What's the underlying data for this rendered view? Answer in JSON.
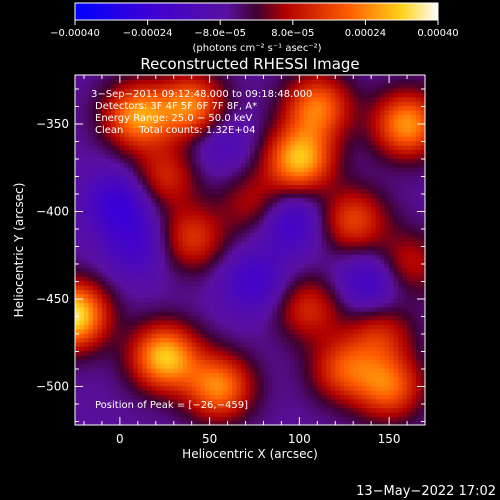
{
  "chart_data": {
    "type": "heatmap",
    "title": "Reconstructed RHESSI Image",
    "xlabel": "Heliocentric X (arcsec)",
    "ylabel": "Heliocentric Y (arcsec)",
    "xlim": [
      -25,
      170
    ],
    "ylim": [
      -522,
      -322
    ],
    "x_ticks": [
      0,
      50,
      100,
      150
    ],
    "y_ticks": [
      -350,
      -400,
      -450,
      -500
    ],
    "x_tick_labels": [
      "0",
      "50",
      "100",
      "150"
    ],
    "y_tick_labels": [
      "−350",
      "−400",
      "−450",
      "−500"
    ],
    "colorbar": {
      "min": -0.0004,
      "max": 0.0004,
      "ticks": [
        -0.0004,
        -0.00024,
        -8e-05,
        8e-05,
        0.00024,
        0.0004
      ],
      "tick_labels": [
        "−0.00040",
        "−0.00024",
        "−8.0e−05",
        "8.0e−05",
        "0.00024",
        "0.00040"
      ],
      "unit_label": "(photons cm⁻² s⁻¹ asec⁻²)",
      "colormap": "RHESSI (blue→purple→red→orange→yellow→white)"
    },
    "annotations": [
      "3−Sep−2011 09:12:48.000 to 09:18:48.000",
      "Detectors: 3F 4F 5F 6F 7F 8F, A*",
      "Energy Range: 25.0 − 50.0 keV",
      "Clean     Total counts: 1.32E+04"
    ],
    "peak_label": "Position of Peak = [−26,−459]",
    "peak_position": [
      -26,
      -459
    ],
    "bright_sources": [
      {
        "x": -26,
        "y": -459,
        "value": 0.0004
      },
      {
        "x": 10,
        "y": -345,
        "value": 0.0003
      },
      {
        "x": 40,
        "y": -340,
        "value": 0.00028
      },
      {
        "x": 100,
        "y": -370,
        "value": 0.00034
      },
      {
        "x": 110,
        "y": -340,
        "value": 0.00026
      },
      {
        "x": 160,
        "y": -350,
        "value": 0.0003
      },
      {
        "x": 25,
        "y": -483,
        "value": 0.00035
      },
      {
        "x": 55,
        "y": -500,
        "value": 0.00028
      },
      {
        "x": 125,
        "y": -490,
        "value": 0.0002
      },
      {
        "x": 150,
        "y": -500,
        "value": 0.00024
      },
      {
        "x": 40,
        "y": -415,
        "value": 0.00018
      },
      {
        "x": 25,
        "y": -380,
        "value": 0.00016
      },
      {
        "x": 130,
        "y": -405,
        "value": 0.0002
      },
      {
        "x": 105,
        "y": -455,
        "value": 0.00016
      },
      {
        "x": 160,
        "y": -430,
        "value": 0.00014
      },
      {
        "x": 75,
        "y": -395,
        "value": 0.00012
      },
      {
        "x": 145,
        "y": -470,
        "value": 0.00015
      }
    ],
    "dim_regions": [
      {
        "x": 0,
        "y": -395,
        "value": -0.0002
      },
      {
        "x": 95,
        "y": -405,
        "value": -0.00018
      },
      {
        "x": 75,
        "y": -440,
        "value": -0.00016
      },
      {
        "x": 140,
        "y": -440,
        "value": -0.00018
      },
      {
        "x": 10,
        "y": -420,
        "value": -0.00014
      },
      {
        "x": 55,
        "y": -360,
        "value": -0.00012
      }
    ]
  },
  "footer": {
    "timestamp": "13−May−2022 17:02"
  }
}
